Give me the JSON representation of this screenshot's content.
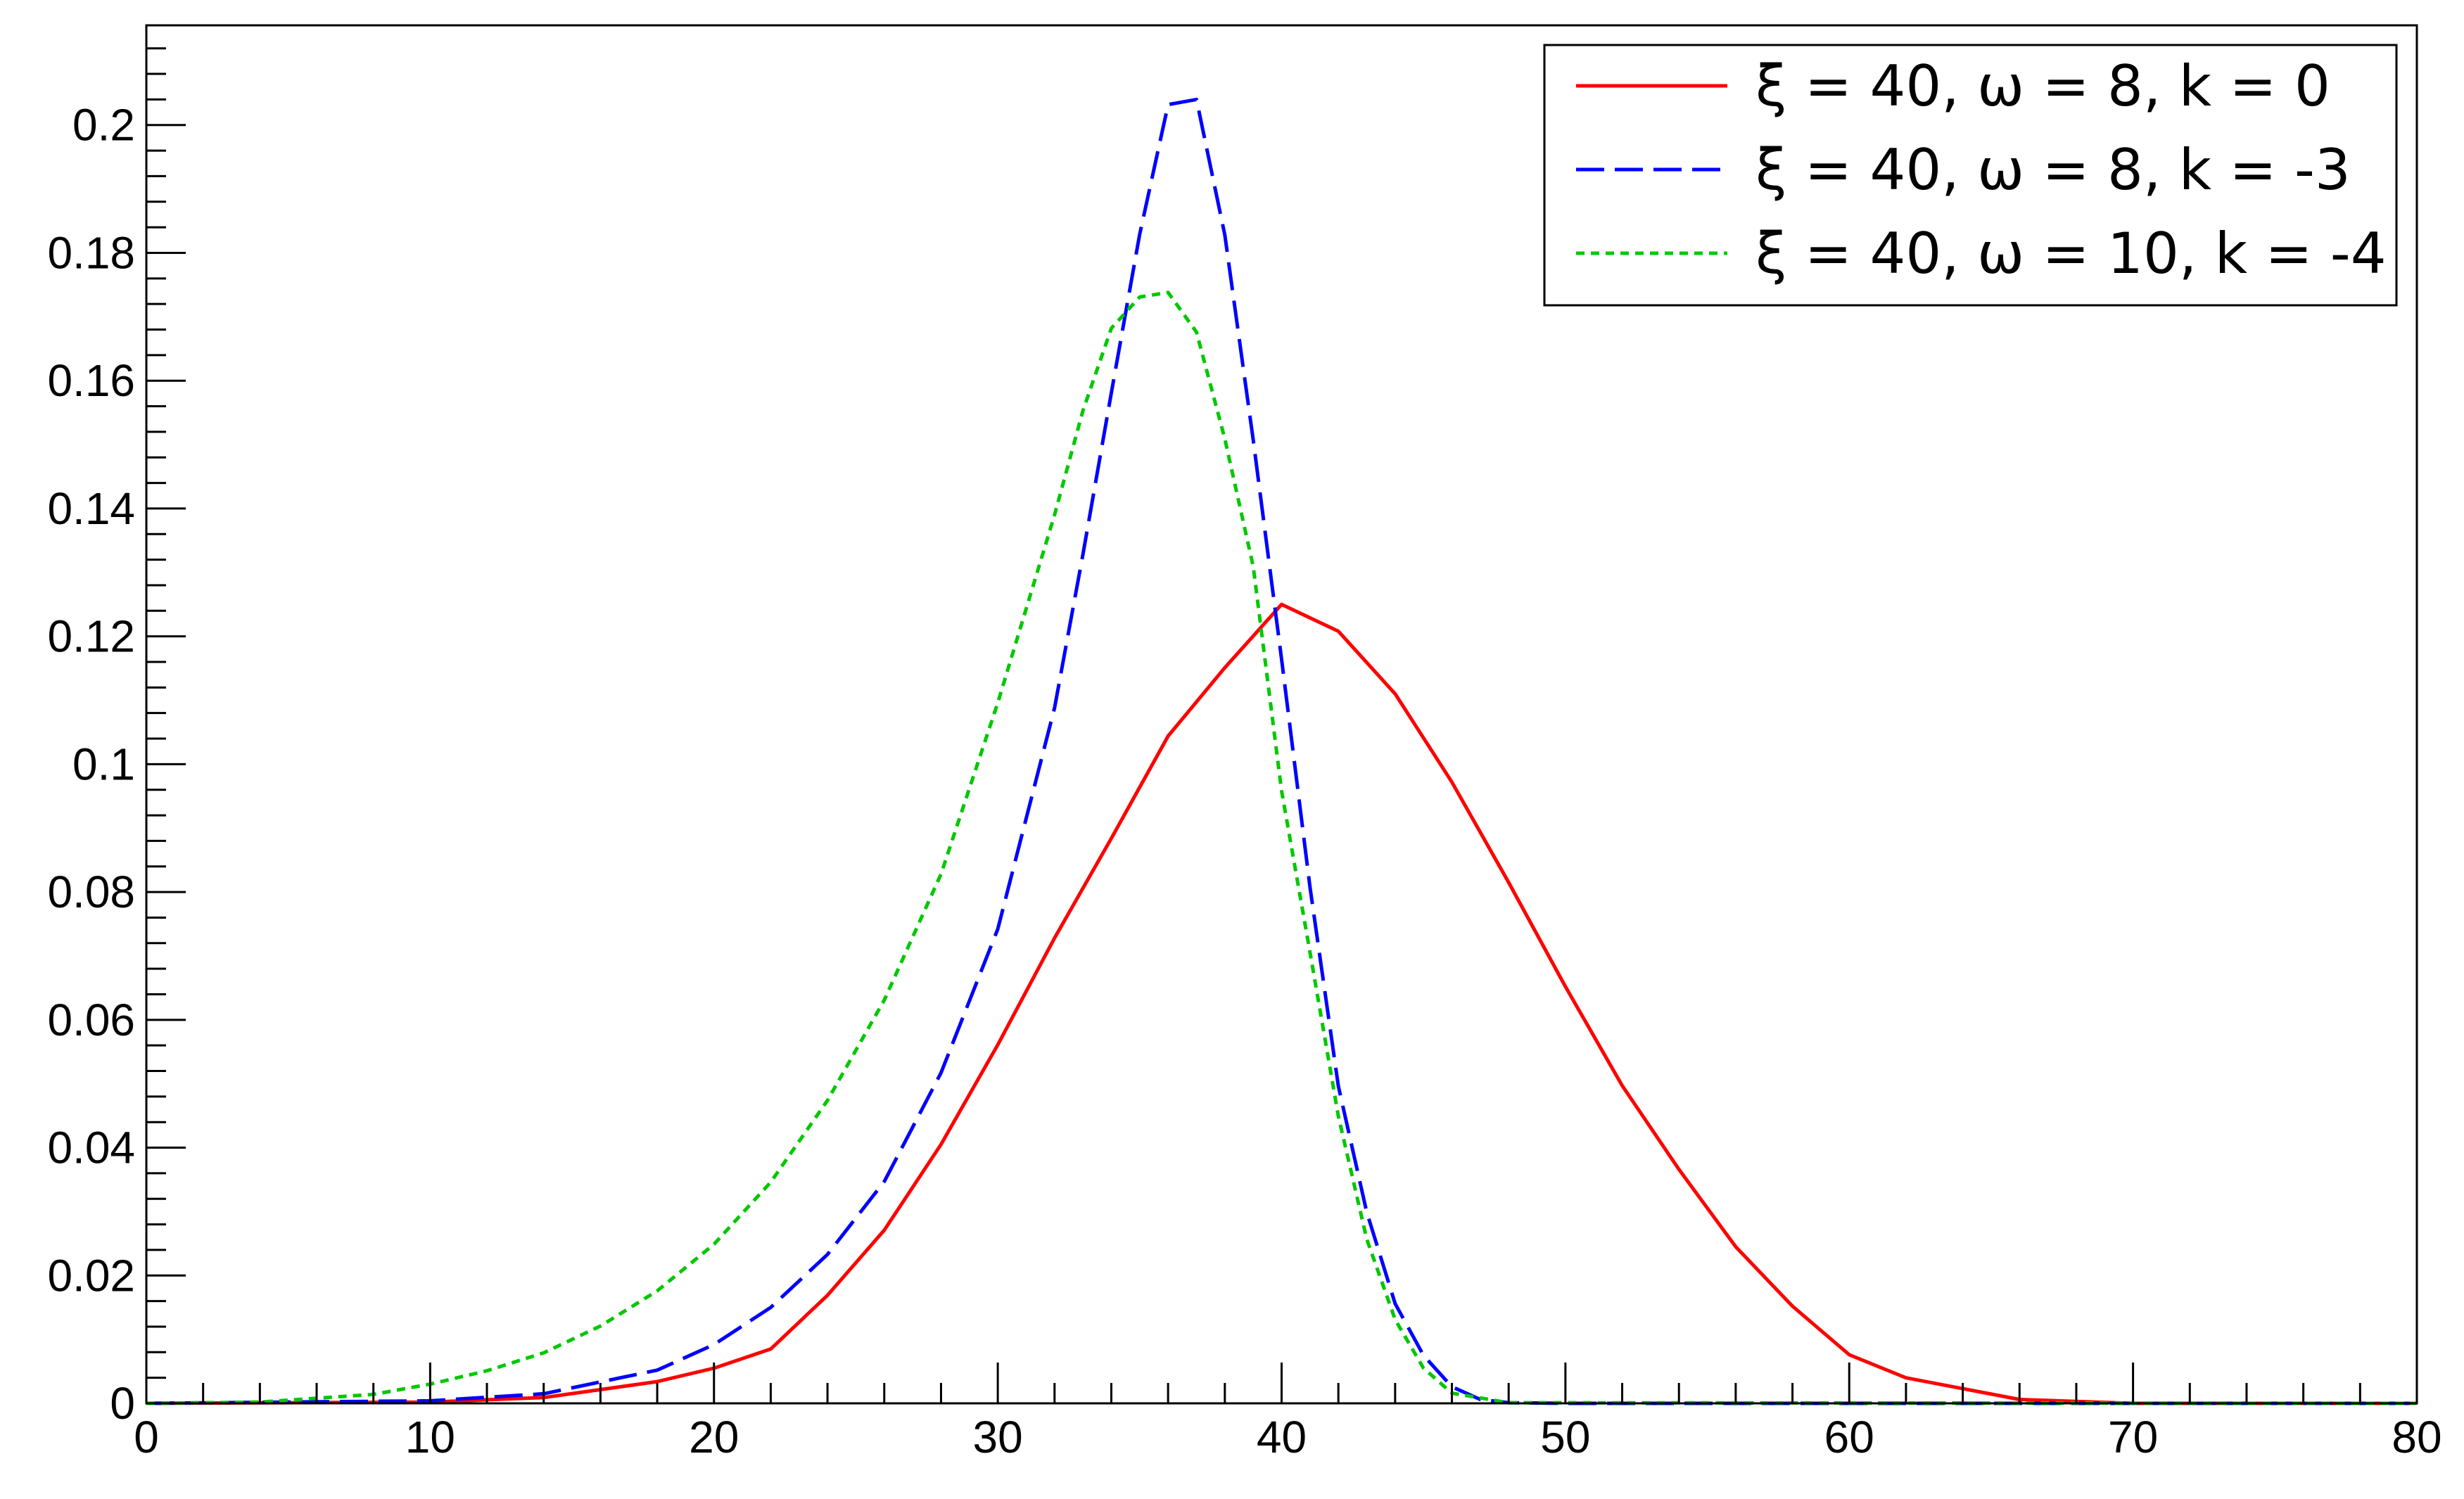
{
  "chart_data": {
    "type": "line",
    "title": "",
    "xlabel": "",
    "ylabel": "",
    "xlim": [
      0,
      80
    ],
    "ylim": [
      0,
      0.2156
    ],
    "grid": false,
    "legend_position": "top-right",
    "x_ticks": [
      0,
      10,
      20,
      30,
      40,
      50,
      60,
      70,
      80
    ],
    "x_tick_labels": [
      "0",
      "10",
      "20",
      "30",
      "40",
      "50",
      "60",
      "70",
      "80"
    ],
    "y_ticks": [
      0,
      0.02,
      0.04,
      0.06,
      0.08,
      0.1,
      0.12,
      0.14,
      0.16,
      0.18,
      0.2
    ],
    "y_tick_labels": [
      "0",
      "0.02",
      "0.04",
      "0.06",
      "0.08",
      "0.1",
      "0.12",
      "0.14",
      "0.16",
      "0.18",
      "0.2"
    ],
    "series": [
      {
        "name": "ξ = 40, ω = 8, k = 0",
        "color": "#ff0000",
        "dash": "solid",
        "x": [
          0,
          10,
          14,
          18,
          20,
          22,
          24,
          26,
          28,
          30,
          32,
          34,
          36,
          38,
          40,
          42,
          44,
          46,
          48,
          50,
          52,
          54,
          56,
          58,
          60,
          62,
          66,
          70,
          80
        ],
        "y": [
          0.0,
          0.0002,
          0.0009,
          0.0034,
          0.0055,
          0.0085,
          0.0169,
          0.0271,
          0.0405,
          0.0561,
          0.0728,
          0.0884,
          0.1044,
          0.1151,
          0.125,
          0.1208,
          0.111,
          0.0972,
          0.0815,
          0.0652,
          0.0497,
          0.0366,
          0.0245,
          0.0152,
          0.0076,
          0.004,
          0.0006,
          0.0,
          0.0
        ]
      },
      {
        "name": "ξ = 40, ω = 8, k = -3",
        "color": "#0000ff",
        "dash": "long-dash",
        "x": [
          0,
          10,
          14,
          18,
          20,
          22,
          24,
          26,
          28,
          30,
          32,
          33,
          34,
          35,
          36,
          37,
          38,
          39,
          40,
          41,
          42,
          43,
          44,
          45,
          46,
          47,
          48,
          50,
          80
        ],
        "y": [
          0.0,
          0.0004,
          0.0015,
          0.0052,
          0.0092,
          0.015,
          0.0233,
          0.0347,
          0.0517,
          0.0742,
          0.1088,
          0.1328,
          0.1581,
          0.1829,
          0.2032,
          0.204,
          0.1828,
          0.1507,
          0.1164,
          0.0808,
          0.0496,
          0.0299,
          0.0156,
          0.0075,
          0.0026,
          0.0006,
          0.0001,
          0.0,
          0.0
        ]
      },
      {
        "name": "ξ = 40, ω = 10, k = -4",
        "color": "#00c800",
        "dash": "short-dash",
        "x": [
          0,
          4,
          8,
          10,
          12,
          14,
          16,
          18,
          20,
          22,
          24,
          26,
          28,
          30,
          32,
          33,
          34,
          35,
          36,
          37,
          38,
          39,
          40,
          41,
          42,
          43,
          44,
          45,
          46,
          48,
          80
        ],
        "y": [
          0.0,
          0.0002,
          0.0014,
          0.003,
          0.0051,
          0.0079,
          0.0121,
          0.0176,
          0.0249,
          0.0346,
          0.0474,
          0.0631,
          0.0828,
          0.1096,
          0.139,
          0.1553,
          0.1682,
          0.1731,
          0.1738,
          0.1676,
          0.1509,
          0.1309,
          0.0958,
          0.0706,
          0.0449,
          0.0257,
          0.0131,
          0.0055,
          0.0016,
          0.0001,
          0.0
        ]
      }
    ]
  }
}
